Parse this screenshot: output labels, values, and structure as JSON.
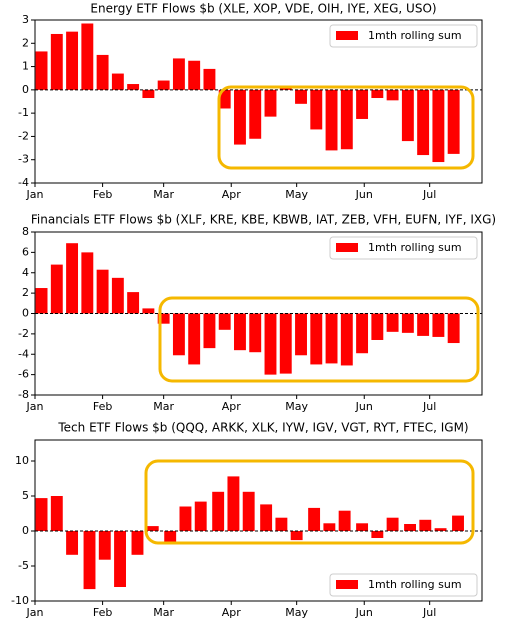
{
  "chart_data": [
    {
      "type": "bar",
      "title": "Energy ETF Flows $b (XLE, XOP, VDE, OIH, IYE, XEG, USO)",
      "x": [
        3,
        10,
        17,
        24,
        31,
        38,
        45,
        52,
        59,
        66,
        73,
        80,
        87,
        94,
        101,
        108,
        115,
        122,
        129,
        136,
        143,
        150,
        157,
        164,
        171,
        178,
        185,
        192
      ],
      "series": [
        {
          "name": "1mth rolling sum",
          "color": "#ff0000",
          "values": [
            1.65,
            2.4,
            2.5,
            2.85,
            1.5,
            0.7,
            0.25,
            -0.35,
            0.4,
            1.35,
            1.25,
            0.9,
            -0.8,
            -2.35,
            -2.1,
            -1.15,
            0.1,
            -0.6,
            -1.7,
            -2.6,
            -2.55,
            -1.25,
            -0.35,
            -0.45,
            -2.2,
            -2.8,
            -3.1,
            -2.75
          ]
        }
      ],
      "xlim": [
        0,
        205
      ],
      "xticks": [
        {
          "value": 0,
          "label": "Jan"
        },
        {
          "value": 31,
          "label": "Feb"
        },
        {
          "value": 59,
          "label": "Mar"
        },
        {
          "value": 90,
          "label": "Apr"
        },
        {
          "value": 120,
          "label": "May"
        },
        {
          "value": 151,
          "label": "Jun"
        },
        {
          "value": 181,
          "label": "Jul"
        }
      ],
      "ylim": [
        -4,
        3
      ],
      "yticks": [
        -4,
        -3,
        -2,
        -1,
        0,
        1,
        2,
        3
      ],
      "legend": "upper right"
    },
    {
      "type": "bar",
      "title": "Financials ETF Flows $b (XLF, KRE, KBE, KBWB, IAT, ZEB, VFH, EUFN, IYF, IXG)",
      "x": [
        3,
        10,
        17,
        24,
        31,
        38,
        45,
        52,
        59,
        66,
        73,
        80,
        87,
        94,
        101,
        108,
        115,
        122,
        129,
        136,
        143,
        150,
        157,
        164,
        171,
        178,
        185,
        192
      ],
      "series": [
        {
          "name": "1mth rolling sum",
          "color": "#ff0000",
          "values": [
            2.5,
            4.8,
            6.9,
            6.0,
            4.3,
            3.5,
            2.1,
            0.5,
            -1.0,
            -4.1,
            -5.0,
            -3.4,
            -1.6,
            -3.6,
            -3.8,
            -6.0,
            -5.9,
            -4.1,
            -5.0,
            -4.9,
            -5.1,
            -3.9,
            -2.6,
            -1.8,
            -1.9,
            -2.2,
            -2.3,
            -2.9
          ]
        }
      ],
      "xlim": [
        0,
        205
      ],
      "xticks": [
        {
          "value": 0,
          "label": "Jan"
        },
        {
          "value": 31,
          "label": "Feb"
        },
        {
          "value": 59,
          "label": "Mar"
        },
        {
          "value": 90,
          "label": "Apr"
        },
        {
          "value": 120,
          "label": "May"
        },
        {
          "value": 151,
          "label": "Jun"
        },
        {
          "value": 181,
          "label": "Jul"
        }
      ],
      "ylim": [
        -8,
        8
      ],
      "yticks": [
        -8,
        -6,
        -4,
        -2,
        0,
        2,
        4,
        6,
        8
      ],
      "legend": "upper right"
    },
    {
      "type": "bar",
      "title": "Tech ETF Flows $b (QQQ, ARKK, XLK, IYW, IGV, VGT, RYT, FTEC, IGM)",
      "x": [
        3,
        10,
        17,
        25,
        32,
        39,
        47,
        54,
        62,
        69,
        76,
        84,
        91,
        98,
        106,
        113,
        120,
        128,
        135,
        142,
        150,
        157,
        164,
        172,
        179,
        186,
        194
      ],
      "series": [
        {
          "name": "1mth rolling sum",
          "color": "#ff0000",
          "values": [
            4.7,
            5.0,
            -3.4,
            -8.3,
            -4.1,
            -8.0,
            -3.4,
            0.7,
            -1.6,
            3.5,
            4.2,
            5.6,
            7.8,
            5.6,
            3.8,
            1.9,
            -1.3,
            3.3,
            1.1,
            2.9,
            1.1,
            -1.0,
            1.9,
            1.0,
            1.6,
            0.4,
            2.2
          ]
        }
      ],
      "xlim": [
        0,
        205
      ],
      "xticks": [
        {
          "value": 0,
          "label": "Jan"
        },
        {
          "value": 31,
          "label": "Feb"
        },
        {
          "value": 59,
          "label": "Mar"
        },
        {
          "value": 90,
          "label": "Apr"
        },
        {
          "value": 120,
          "label": "May"
        },
        {
          "value": 151,
          "label": "Jun"
        },
        {
          "value": 181,
          "label": "Jul"
        }
      ],
      "ylim": [
        -10,
        13
      ],
      "yticks": [
        -10,
        -5,
        0,
        5,
        10
      ],
      "legend": "lower right"
    }
  ]
}
